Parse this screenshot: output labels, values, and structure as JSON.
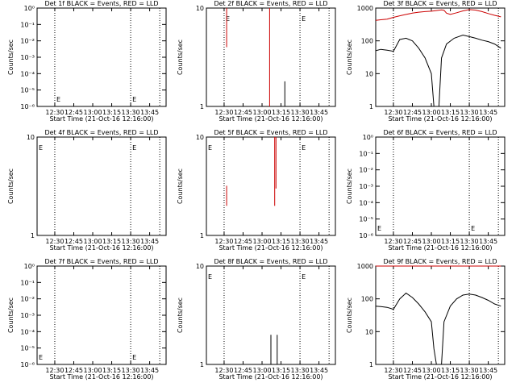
{
  "chart_data": [
    {
      "type": "line",
      "title": "Det 1f BLACK = Events, RED = LLD",
      "xlabel": "Start Time (21-Oct-16 12:16:00)",
      "ylabel": "Counts/sec",
      "x_ticks": [
        "12:30",
        "12:45",
        "13:00",
        "13:15",
        "13:30",
        "13:45"
      ],
      "y_ticks": [
        "10⁰",
        "10⁻¹",
        "10⁻²",
        "10⁻³",
        "10⁻⁴",
        "10⁻⁵",
        "10⁻⁶"
      ],
      "ylim": [
        1e-06,
        1.0
      ],
      "log_y": true,
      "markers": [
        {
          "x": "12:30",
          "label": "E"
        },
        {
          "x": "13:30",
          "label": "E"
        }
      ],
      "series": []
    },
    {
      "type": "line",
      "title": "Det 2f BLACK = Events, RED = LLD",
      "xlabel": "Start Time (21-Oct-16 12:16:00)",
      "ylabel": "Counts/sec",
      "x_ticks": [
        "12:30",
        "12:45",
        "13:00",
        "13:15",
        "13:30",
        "13:45"
      ],
      "y_ticks": [
        "10",
        "1"
      ],
      "ylim": [
        1,
        10
      ],
      "log_y": true,
      "markers": [
        {
          "x": "12:30",
          "label": "E"
        },
        {
          "x": "13:30",
          "label": "E"
        }
      ],
      "series": [
        {
          "color": "#cc0000",
          "segments": [
            [
              [
                "12:32",
                10
              ],
              [
                "12:32",
                4
              ]
            ],
            [
              [
                "13:06",
                10
              ],
              [
                "13:06",
                1
              ]
            ]
          ]
        },
        {
          "color": "#000000",
          "segments": [
            [
              [
                "13:18",
                1.8
              ],
              [
                "13:18",
                1
              ]
            ]
          ]
        }
      ]
    },
    {
      "type": "line",
      "title": "Det 3f BLACK = Events, RED = LLD",
      "xlabel": "Start Time (21-Oct-16 12:16:00)",
      "ylabel": "Counts/sec",
      "x_ticks": [
        "12:30",
        "12:45",
        "13:00",
        "13:15",
        "13:30",
        "13:45"
      ],
      "y_ticks": [
        "1000",
        "100",
        "10",
        "1"
      ],
      "ylim": [
        1,
        1000
      ],
      "log_y": true,
      "markers": [],
      "series": [
        {
          "color": "#cc0000",
          "points": [
            [
              "12:16",
              420
            ],
            [
              "12:20",
              440
            ],
            [
              "12:25",
              460
            ],
            [
              "12:30",
              520
            ],
            [
              "12:35",
              580
            ],
            [
              "12:40",
              640
            ],
            [
              "12:45",
              700
            ],
            [
              "12:50",
              750
            ],
            [
              "12:55",
              780
            ],
            [
              "13:00",
              800
            ],
            [
              "13:02",
              820
            ],
            [
              "13:05",
              850
            ],
            [
              "13:08",
              880
            ],
            [
              "13:10",
              860
            ],
            [
              "13:12",
              700
            ],
            [
              "13:15",
              640
            ],
            [
              "13:20",
              720
            ],
            [
              "13:25",
              820
            ],
            [
              "13:30",
              900
            ],
            [
              "13:35",
              870
            ],
            [
              "13:40",
              780
            ],
            [
              "13:45",
              680
            ],
            [
              "13:50",
              600
            ],
            [
              "13:55",
              540
            ]
          ]
        },
        {
          "color": "#000000",
          "points": [
            [
              "12:16",
              50
            ],
            [
              "12:20",
              55
            ],
            [
              "12:25",
              52
            ],
            [
              "12:30",
              48
            ],
            [
              "12:35",
              110
            ],
            [
              "12:40",
              120
            ],
            [
              "12:45",
              100
            ],
            [
              "12:50",
              60
            ],
            [
              "12:55",
              30
            ],
            [
              "13:00",
              10
            ],
            [
              "13:02",
              1
            ],
            [
              "13:06",
              1
            ],
            [
              "13:08",
              30
            ],
            [
              "13:12",
              80
            ],
            [
              "13:18",
              120
            ],
            [
              "13:25",
              150
            ],
            [
              "13:30",
              135
            ],
            [
              "13:35",
              120
            ],
            [
              "13:40",
              105
            ],
            [
              "13:45",
              95
            ],
            [
              "13:50",
              80
            ],
            [
              "13:55",
              60
            ]
          ]
        }
      ]
    },
    {
      "type": "line",
      "title": "Det 4f BLACK = Events, RED = LLD",
      "xlabel": "Start Time (21-Oct-16 12:16:00)",
      "ylabel": "Counts/sec",
      "x_ticks": [
        "12:30",
        "12:45",
        "13:00",
        "13:15",
        "13:30",
        "13:45"
      ],
      "y_ticks": [
        "10",
        "1"
      ],
      "ylim": [
        1,
        10
      ],
      "log_y": true,
      "markers": [
        {
          "x": "12:16",
          "label": "E"
        },
        {
          "x": "13:30",
          "label": "E"
        }
      ],
      "series": []
    },
    {
      "type": "line",
      "title": "Det 5f BLACK = Events, RED = LLD",
      "xlabel": "Start Time (21-Oct-16 12:16:00)",
      "ylabel": "Counts/sec",
      "x_ticks": [
        "12:30",
        "12:45",
        "13:00",
        "13:15",
        "13:30",
        "13:45"
      ],
      "y_ticks": [
        "10",
        "1"
      ],
      "ylim": [
        1,
        10
      ],
      "log_y": true,
      "markers": [
        {
          "x": "12:16",
          "label": "E"
        },
        {
          "x": "13:30",
          "label": "E"
        }
      ],
      "series": [
        {
          "color": "#cc0000",
          "segments": [
            [
              [
                "12:32",
                3.2
              ],
              [
                "12:32",
                2.0
              ]
            ],
            [
              [
                "13:10",
                10
              ],
              [
                "13:10",
                2.0
              ]
            ],
            [
              [
                "13:11",
                10
              ],
              [
                "13:11",
                3.0
              ]
            ]
          ]
        }
      ]
    },
    {
      "type": "line",
      "title": "Det 6f BLACK = Events, RED = LLD",
      "xlabel": "Start Time (21-Oct-16 12:16:00)",
      "ylabel": "Counts/sec",
      "x_ticks": [
        "12:30",
        "12:45",
        "13:00",
        "13:15",
        "13:30",
        "13:45"
      ],
      "y_ticks": [
        "10⁰",
        "10⁻¹",
        "10⁻²",
        "10⁻³",
        "10⁻⁴",
        "10⁻⁵",
        "10⁻⁶"
      ],
      "ylim": [
        1e-06,
        1.0
      ],
      "log_y": true,
      "markers": [
        {
          "x": "12:16",
          "label": "E"
        },
        {
          "x": "13:30",
          "label": "E"
        }
      ],
      "series": []
    },
    {
      "type": "line",
      "title": "Det 7f BLACK = Events, RED = LLD",
      "xlabel": "Start Time (21-Oct-16 12:16:00)",
      "ylabel": "Counts/sec",
      "x_ticks": [
        "12:30",
        "12:45",
        "13:00",
        "13:15",
        "13:30",
        "13:45"
      ],
      "y_ticks": [
        "10⁰",
        "10⁻¹",
        "10⁻²",
        "10⁻³",
        "10⁻⁴",
        "10⁻⁵",
        "10⁻⁶"
      ],
      "ylim": [
        1e-06,
        1.0
      ],
      "log_y": true,
      "markers": [
        {
          "x": "12:16",
          "label": "E"
        },
        {
          "x": "13:30",
          "label": "E"
        }
      ],
      "series": []
    },
    {
      "type": "line",
      "title": "Det 8f BLACK = Events, RED = LLD",
      "xlabel": "Start Time (21-Oct-16 12:16:00)",
      "ylabel": "Counts/sec",
      "x_ticks": [
        "12:30",
        "12:45",
        "13:00",
        "13:15",
        "13:30",
        "13:45"
      ],
      "y_ticks": [
        "10",
        "1"
      ],
      "ylim": [
        1,
        10
      ],
      "log_y": true,
      "markers": [
        {
          "x": "12:16",
          "label": "E"
        },
        {
          "x": "13:30",
          "label": "E"
        }
      ],
      "series": [
        {
          "color": "#000000",
          "segments": [
            [
              [
                "13:07",
                2.0
              ],
              [
                "13:07",
                1
              ]
            ],
            [
              [
                "13:12",
                2.0
              ],
              [
                "13:12",
                1
              ]
            ]
          ]
        }
      ]
    },
    {
      "type": "line",
      "title": "Det 9f BLACK = Events, RED = LLD",
      "xlabel": "Start Time (21-Oct-16 12:16:00)",
      "ylabel": "Counts/sec",
      "x_ticks": [
        "12:30",
        "12:45",
        "13:00",
        "13:15",
        "13:30",
        "13:45"
      ],
      "y_ticks": [
        "1000",
        "100",
        "10",
        "1"
      ],
      "ylim": [
        1,
        1000
      ],
      "log_y": true,
      "markers": [],
      "series": [
        {
          "color": "#cc0000",
          "points": [
            [
              "12:16",
              1000
            ],
            [
              "12:30",
              1000
            ],
            [
              "12:45",
              1000
            ],
            [
              "13:00",
              1000
            ],
            [
              "13:15",
              1000
            ],
            [
              "13:30",
              1000
            ],
            [
              "13:45",
              1000
            ],
            [
              "13:55",
              1000
            ]
          ]
        },
        {
          "color": "#000000",
          "points": [
            [
              "12:16",
              60
            ],
            [
              "12:20",
              58
            ],
            [
              "12:25",
              55
            ],
            [
              "12:30",
              48
            ],
            [
              "12:35",
              100
            ],
            [
              "12:40",
              150
            ],
            [
              "12:45",
              110
            ],
            [
              "12:50",
              70
            ],
            [
              "12:55",
              40
            ],
            [
              "13:00",
              20
            ],
            [
              "13:02",
              3
            ],
            [
              "13:04",
              1
            ],
            [
              "13:08",
              1
            ],
            [
              "13:10",
              20
            ],
            [
              "13:15",
              60
            ],
            [
              "13:20",
              100
            ],
            [
              "13:25",
              130
            ],
            [
              "13:30",
              140
            ],
            [
              "13:35",
              130
            ],
            [
              "13:40",
              110
            ],
            [
              "13:45",
              90
            ],
            [
              "13:50",
              70
            ],
            [
              "13:55",
              60
            ]
          ]
        }
      ]
    }
  ]
}
